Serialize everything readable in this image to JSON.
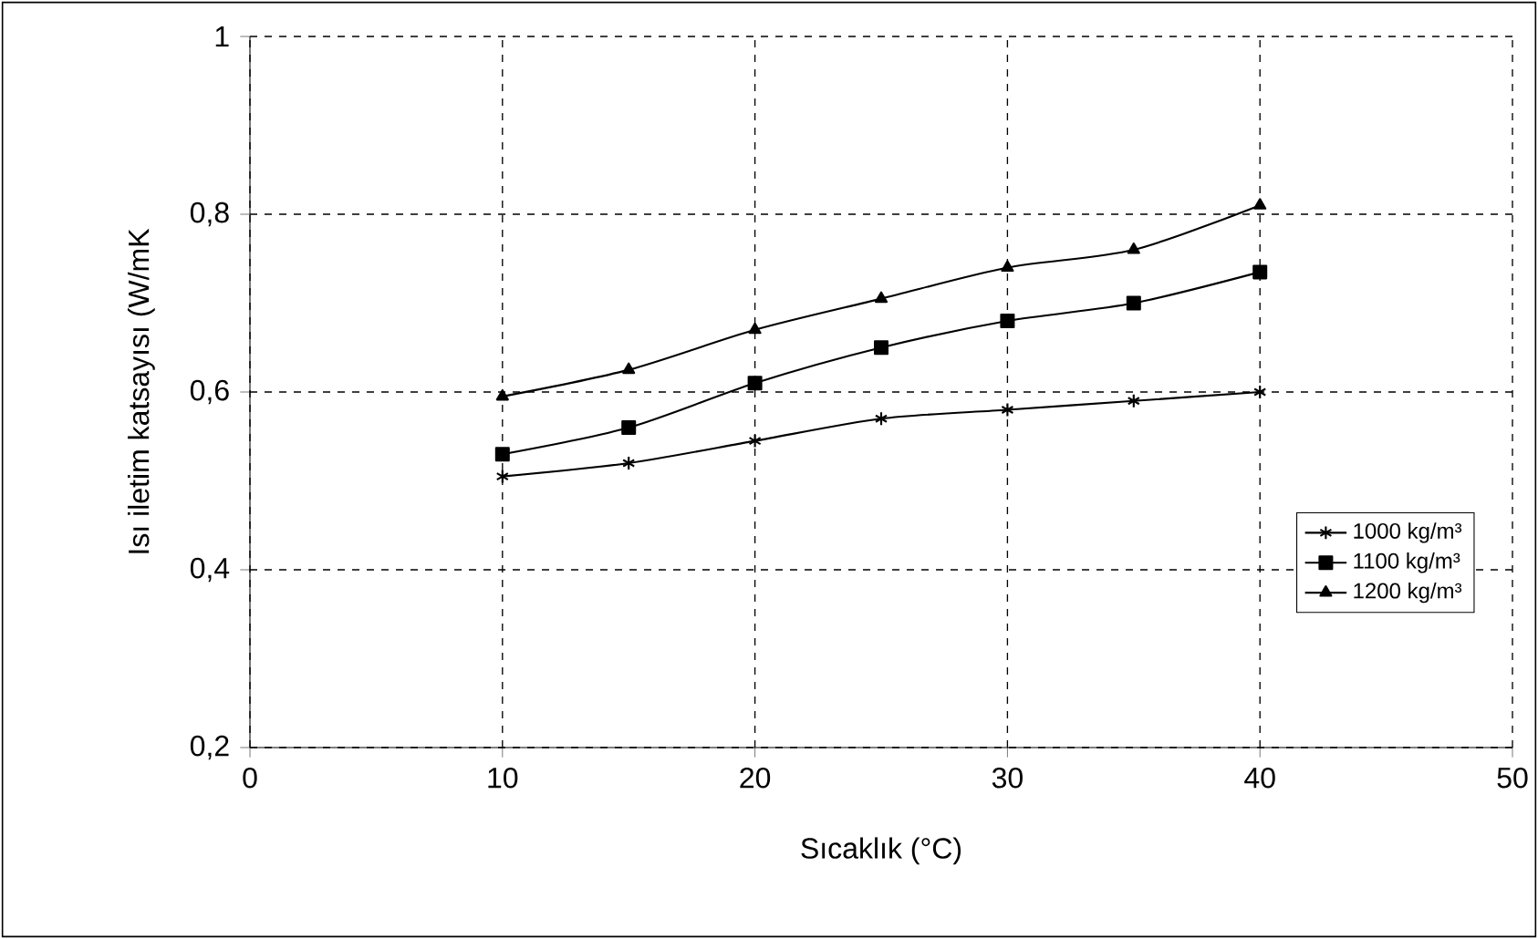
{
  "chart_data": {
    "type": "line",
    "xlabel": "Sıcaklık  (°C)",
    "ylabel": "Isı iletim katsayısı (W/mK",
    "x": [
      10,
      15,
      20,
      25,
      30,
      35,
      40
    ],
    "series": [
      {
        "name": "1000 kg/m³",
        "color": "#000000",
        "marker": "cross",
        "values": [
          0.505,
          0.52,
          0.545,
          0.57,
          0.58,
          0.59,
          0.6
        ]
      },
      {
        "name": "1100 kg/m³",
        "color": "#000000",
        "marker": "square",
        "values": [
          0.53,
          0.56,
          0.61,
          0.65,
          0.68,
          0.7,
          0.735
        ]
      },
      {
        "name": "1200 kg/m³",
        "color": "#000000",
        "marker": "triangle",
        "values": [
          0.595,
          0.625,
          0.67,
          0.705,
          0.74,
          0.76,
          0.81
        ]
      }
    ],
    "xlim": [
      0,
      50
    ],
    "xticks": [
      0,
      10,
      20,
      30,
      40,
      50
    ],
    "ylim": [
      0.2,
      1
    ],
    "yticks": [
      {
        "value": 0.2,
        "label": "0,2"
      },
      {
        "value": 0.4,
        "label": "0,4"
      },
      {
        "value": 0.6,
        "label": "0,6"
      },
      {
        "value": 0.8,
        "label": "0,8"
      },
      1
    ],
    "grid": true,
    "line_style": "solid",
    "legend": "right"
  }
}
